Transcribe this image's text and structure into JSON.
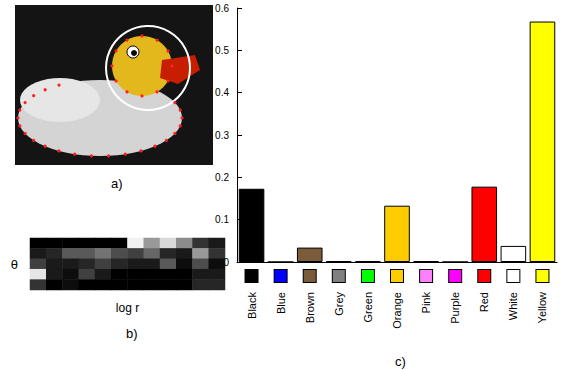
{
  "image": {
    "caption": "a)"
  },
  "chart_data": [
    {
      "type": "heatmap",
      "caption": "b)",
      "xlabel": "log r",
      "ylabel": "θ",
      "tick_labels": false,
      "zlim": [
        0,
        1
      ],
      "cells": [
        [
          0,
          0,
          0,
          0,
          0,
          0,
          0.95,
          0.6,
          0.85,
          0.55,
          0.2,
          0.1
        ],
        [
          0.1,
          0.15,
          0.35,
          0.35,
          0.45,
          0.3,
          0.25,
          0.4,
          0.15,
          0.1,
          0.6,
          0.2
        ],
        [
          0.25,
          0.1,
          0.1,
          0.15,
          0.25,
          0.15,
          0.1,
          0.1,
          0.35,
          0.05,
          0.3,
          0.05
        ],
        [
          0.9,
          0.1,
          0.05,
          0.25,
          0.1,
          0,
          0,
          0,
          0,
          0,
          0.1,
          0.1
        ],
        [
          0.2,
          0,
          0.05,
          0,
          0,
          0,
          0,
          0,
          0,
          0,
          0.15,
          0.15
        ]
      ]
    },
    {
      "type": "bar",
      "caption": "c)",
      "categories": [
        "Black",
        "Blue",
        "Brown",
        "Grey",
        "Green",
        "Orange",
        "Pink",
        "Purple",
        "Red",
        "White",
        "Yellow"
      ],
      "values": [
        0.173,
        0,
        0.034,
        0.002,
        0.002,
        0.133,
        0.002,
        0,
        0.178,
        0.038,
        0.568
      ],
      "colors": [
        "#000000",
        "#0000ff",
        "#7a5c3a",
        "#808080",
        "#00ff00",
        "#ffcc00",
        "#ff80ff",
        "#ff00ff",
        "#ff0000",
        "#ffffff",
        "#ffff00"
      ],
      "ylim": [
        0,
        0.6
      ],
      "yticks": [
        0,
        0.1,
        0.2,
        0.3,
        0.4,
        0.5,
        0.6
      ],
      "grid": false
    }
  ]
}
